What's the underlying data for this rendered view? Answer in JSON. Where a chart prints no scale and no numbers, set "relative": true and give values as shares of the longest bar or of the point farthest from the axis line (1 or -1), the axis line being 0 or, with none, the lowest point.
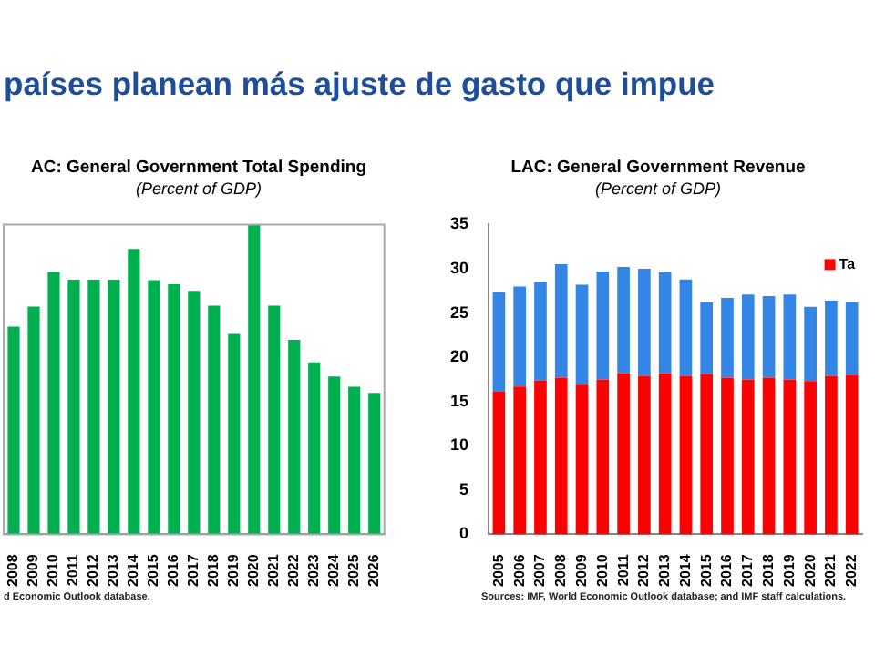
{
  "chart_data": [
    {
      "type": "other",
      "title": "países planean más ajuste de gasto que impue"
    },
    {
      "type": "bar",
      "title": "AC: General Government Total Spending",
      "subtitle": "(Percent of GDP)",
      "relative": true,
      "categories": [
        "2008",
        "2009",
        "2010",
        "2011",
        "2012",
        "2013",
        "2014",
        "2015",
        "2016",
        "2017",
        "2018",
        "2019",
        "2020",
        "2021",
        "2022",
        "2023",
        "2024",
        "2025",
        "2026"
      ],
      "values": [
        0.67,
        0.735,
        0.847,
        0.822,
        0.822,
        0.822,
        0.921,
        0.82,
        0.807,
        0.786,
        0.738,
        0.647,
        1,
        0.738,
        0.628,
        0.555,
        0.509,
        0.476,
        0.456
      ],
      "color": "#00b050",
      "annotations": [
        "d Economic Outlook database."
      ]
    },
    {
      "type": "bar",
      "title": "LAC: General Government Revenue",
      "subtitle": "(Percent of GDP)",
      "stacked": true,
      "categories": [
        "2005",
        "2006",
        "2007",
        "2008",
        "2009",
        "2010",
        "2011",
        "2012",
        "2013",
        "2014",
        "2015",
        "2016",
        "2017",
        "2018",
        "2019",
        "2020",
        "2021",
        "2022"
      ],
      "series": [
        {
          "name": "Ta",
          "color": "#ff0000",
          "values": [
            16.1,
            16.7,
            17.4,
            17.7,
            16.9,
            17.5,
            18.2,
            17.9,
            18.2,
            17.9,
            18.1,
            17.7,
            17.5,
            17.7,
            17.5,
            17.3,
            17.9,
            18.0
          ]
        },
        {
          "color": "#3385e6",
          "values": [
            11.3,
            11.3,
            11.1,
            12.8,
            11.3,
            12.2,
            12.0,
            12.1,
            11.4,
            10.9,
            8.1,
            9.0,
            9.6,
            9.2,
            9.6,
            8.4,
            8.5,
            8.2
          ]
        }
      ],
      "ylim": [
        0,
        35
      ],
      "yticks": [
        0,
        5,
        10,
        15,
        20,
        25,
        30,
        35
      ],
      "legend": "top right",
      "annotations": [
        "Sources: IMF, World Economic Outlook database; and IMF staff calculations."
      ]
    }
  ]
}
